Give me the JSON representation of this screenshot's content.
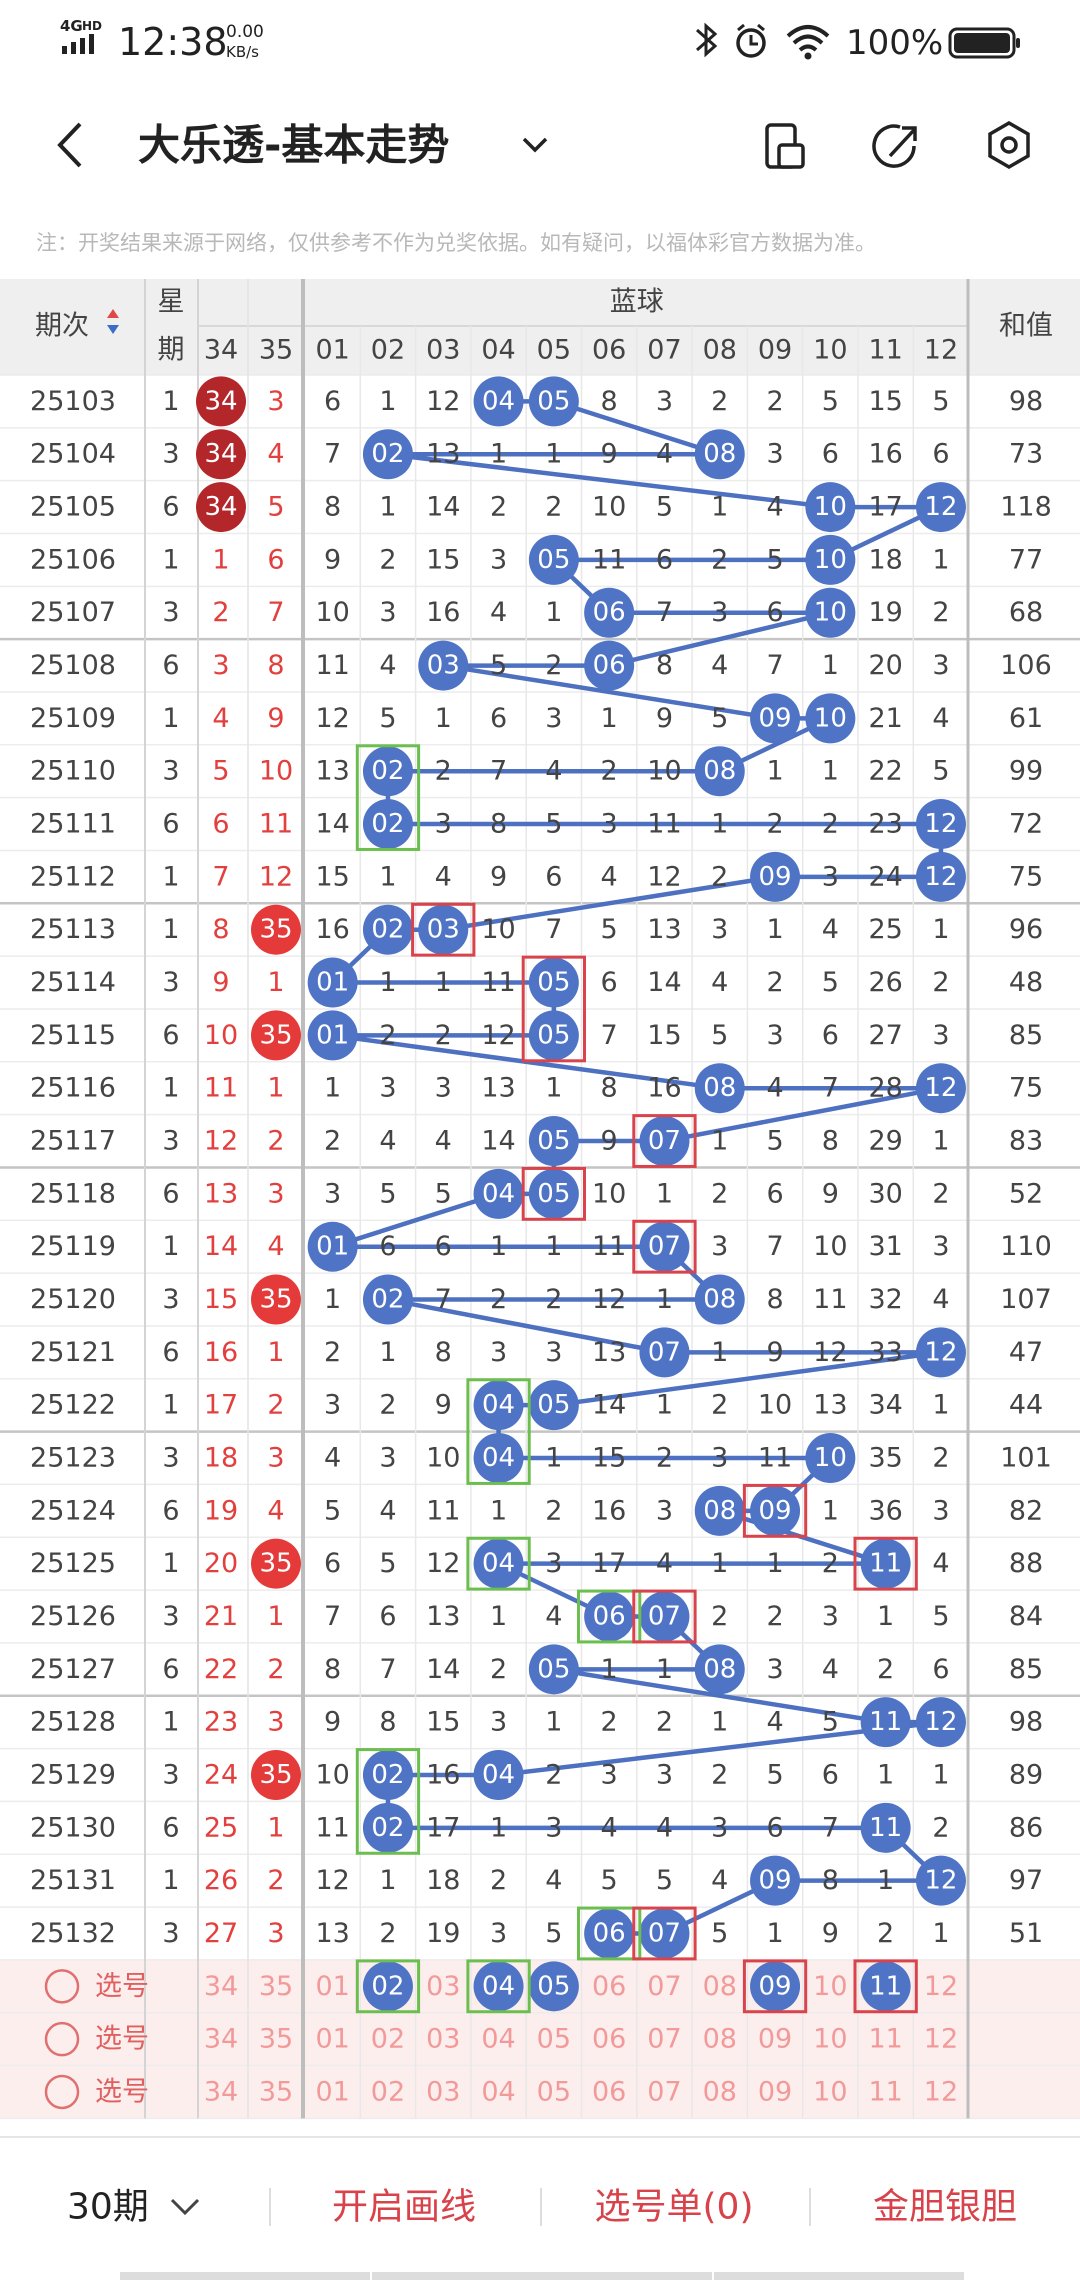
{
  "status_bar": {
    "network": "4G",
    "hd": "HD",
    "time": "12:38",
    "speed": "0.00",
    "speed_unit": "KB/s",
    "battery": "100%"
  },
  "header": {
    "title": "大乐透-基本走势"
  },
  "note": "注：开奖结果来源于网络，仅供参考不作为兑奖依据。如有疑问，以福体彩官方数据为准。",
  "table": {
    "headers": {
      "period": "期次",
      "weekday": [
        "星",
        "期"
      ],
      "col34": "34",
      "col35": "35",
      "blue": "蓝球",
      "blue_cols": [
        "01",
        "02",
        "03",
        "04",
        "05",
        "06",
        "07",
        "08",
        "09",
        "10",
        "11",
        "12"
      ],
      "sum": "和值"
    },
    "rows": [
      {
        "period": "25103",
        "weekday": "1",
        "c34": "34",
        "c35": "3",
        "blue": [
          "6",
          "1",
          "12",
          "04",
          "05",
          "8",
          "3",
          "2",
          "2",
          "5",
          "15",
          "5"
        ],
        "sum": "98",
        "hits": [
          3,
          4
        ],
        "ball": [
          "c34"
        ]
      },
      {
        "period": "25104",
        "weekday": "3",
        "c34": "34",
        "c35": "4",
        "blue": [
          "7",
          "02",
          "13",
          "1",
          "1",
          "9",
          "4",
          "08",
          "3",
          "6",
          "16",
          "6"
        ],
        "sum": "73",
        "hits": [
          1,
          7
        ],
        "ball": [
          "c34"
        ]
      },
      {
        "period": "25105",
        "weekday": "6",
        "c34": "34",
        "c35": "5",
        "blue": [
          "8",
          "1",
          "14",
          "2",
          "2",
          "10",
          "5",
          "1",
          "4",
          "10",
          "17",
          "12"
        ],
        "sum": "118",
        "hits": [
          9,
          11
        ],
        "ball": [
          "c34"
        ]
      },
      {
        "period": "25106",
        "weekday": "1",
        "c34": "1",
        "c35": "6",
        "blue": [
          "9",
          "2",
          "15",
          "3",
          "05",
          "11",
          "6",
          "2",
          "5",
          "10",
          "18",
          "1"
        ],
        "sum": "77",
        "hits": [
          4,
          9
        ],
        "ball": []
      },
      {
        "period": "25107",
        "weekday": "3",
        "c34": "2",
        "c35": "7",
        "blue": [
          "10",
          "3",
          "16",
          "4",
          "1",
          "06",
          "7",
          "3",
          "6",
          "10",
          "19",
          "2"
        ],
        "sum": "68",
        "hits": [
          5,
          9
        ],
        "ball": []
      },
      {
        "period": "25108",
        "weekday": "6",
        "c34": "3",
        "c35": "8",
        "blue": [
          "11",
          "4",
          "03",
          "5",
          "2",
          "06",
          "8",
          "4",
          "7",
          "1",
          "20",
          "3"
        ],
        "sum": "106",
        "hits": [
          2,
          5
        ],
        "ball": []
      },
      {
        "period": "25109",
        "weekday": "1",
        "c34": "4",
        "c35": "9",
        "blue": [
          "12",
          "5",
          "1",
          "6",
          "3",
          "1",
          "9",
          "5",
          "09",
          "10",
          "21",
          "4"
        ],
        "sum": "61",
        "hits": [
          8,
          9
        ],
        "ball": []
      },
      {
        "period": "25110",
        "weekday": "3",
        "c34": "5",
        "c35": "10",
        "blue": [
          "13",
          "02",
          "2",
          "7",
          "4",
          "2",
          "10",
          "08",
          "1",
          "1",
          "22",
          "5"
        ],
        "sum": "99",
        "hits": [
          1,
          7
        ],
        "ball": []
      },
      {
        "period": "25111",
        "weekday": "6",
        "c34": "6",
        "c35": "11",
        "blue": [
          "14",
          "02",
          "3",
          "8",
          "5",
          "3",
          "11",
          "1",
          "2",
          "2",
          "23",
          "12"
        ],
        "sum": "72",
        "hits": [
          1,
          11
        ],
        "ball": []
      },
      {
        "period": "25112",
        "weekday": "1",
        "c34": "7",
        "c35": "12",
        "blue": [
          "15",
          "1",
          "4",
          "9",
          "6",
          "4",
          "12",
          "2",
          "09",
          "3",
          "24",
          "12"
        ],
        "sum": "75",
        "hits": [
          8,
          11
        ],
        "ball": []
      },
      {
        "period": "25113",
        "weekday": "1",
        "c34": "8",
        "c35": "35",
        "blue": [
          "16",
          "02",
          "03",
          "10",
          "7",
          "5",
          "13",
          "3",
          "1",
          "4",
          "25",
          "1"
        ],
        "sum": "96",
        "hits": [
          1,
          2
        ],
        "ball": [
          "c35"
        ]
      },
      {
        "period": "25114",
        "weekday": "3",
        "c34": "9",
        "c35": "1",
        "blue": [
          "01",
          "1",
          "1",
          "11",
          "05",
          "6",
          "14",
          "4",
          "2",
          "5",
          "26",
          "2"
        ],
        "sum": "48",
        "hits": [
          0,
          4
        ],
        "ball": []
      },
      {
        "period": "25115",
        "weekday": "6",
        "c34": "10",
        "c35": "35",
        "blue": [
          "01",
          "2",
          "2",
          "12",
          "05",
          "7",
          "15",
          "5",
          "3",
          "6",
          "27",
          "3"
        ],
        "sum": "85",
        "hits": [
          0,
          4
        ],
        "ball": [
          "c35"
        ]
      },
      {
        "period": "25116",
        "weekday": "1",
        "c34": "11",
        "c35": "1",
        "blue": [
          "1",
          "3",
          "3",
          "13",
          "1",
          "8",
          "16",
          "08",
          "4",
          "7",
          "28",
          "12"
        ],
        "sum": "75",
        "hits": [
          7,
          11
        ],
        "ball": []
      },
      {
        "period": "25117",
        "weekday": "3",
        "c34": "12",
        "c35": "2",
        "blue": [
          "2",
          "4",
          "4",
          "14",
          "05",
          "9",
          "07",
          "1",
          "5",
          "8",
          "29",
          "1"
        ],
        "sum": "83",
        "hits": [
          4,
          6
        ],
        "ball": []
      },
      {
        "period": "25118",
        "weekday": "6",
        "c34": "13",
        "c35": "3",
        "blue": [
          "3",
          "5",
          "5",
          "04",
          "05",
          "10",
          "1",
          "2",
          "6",
          "9",
          "30",
          "2"
        ],
        "sum": "52",
        "hits": [
          3,
          4
        ],
        "ball": []
      },
      {
        "period": "25119",
        "weekday": "1",
        "c34": "14",
        "c35": "4",
        "blue": [
          "01",
          "6",
          "6",
          "1",
          "1",
          "11",
          "07",
          "3",
          "7",
          "10",
          "31",
          "3"
        ],
        "sum": "110",
        "hits": [
          0,
          6
        ],
        "ball": []
      },
      {
        "period": "25120",
        "weekday": "3",
        "c34": "15",
        "c35": "35",
        "blue": [
          "1",
          "02",
          "7",
          "2",
          "2",
          "12",
          "1",
          "08",
          "8",
          "11",
          "32",
          "4"
        ],
        "sum": "107",
        "hits": [
          1,
          7
        ],
        "ball": [
          "c35"
        ]
      },
      {
        "period": "25121",
        "weekday": "6",
        "c34": "16",
        "c35": "1",
        "blue": [
          "2",
          "1",
          "8",
          "3",
          "3",
          "13",
          "07",
          "1",
          "9",
          "12",
          "33",
          "12"
        ],
        "sum": "47",
        "hits": [
          6,
          11
        ],
        "ball": []
      },
      {
        "period": "25122",
        "weekday": "1",
        "c34": "17",
        "c35": "2",
        "blue": [
          "3",
          "2",
          "9",
          "04",
          "05",
          "14",
          "1",
          "2",
          "10",
          "13",
          "34",
          "1"
        ],
        "sum": "44",
        "hits": [
          3,
          4
        ],
        "ball": []
      },
      {
        "period": "25123",
        "weekday": "3",
        "c34": "18",
        "c35": "3",
        "blue": [
          "4",
          "3",
          "10",
          "04",
          "1",
          "15",
          "2",
          "3",
          "11",
          "10",
          "35",
          "2"
        ],
        "sum": "101",
        "hits": [
          3,
          9
        ],
        "ball": []
      },
      {
        "period": "25124",
        "weekday": "6",
        "c34": "19",
        "c35": "4",
        "blue": [
          "5",
          "4",
          "11",
          "1",
          "2",
          "16",
          "3",
          "08",
          "09",
          "1",
          "36",
          "3"
        ],
        "sum": "82",
        "hits": [
          7,
          8
        ],
        "ball": []
      },
      {
        "period": "25125",
        "weekday": "1",
        "c34": "20",
        "c35": "35",
        "blue": [
          "6",
          "5",
          "12",
          "04",
          "3",
          "17",
          "4",
          "1",
          "1",
          "2",
          "11",
          "4"
        ],
        "sum": "88",
        "hits": [
          3,
          10
        ],
        "ball": [
          "c35"
        ]
      },
      {
        "period": "25126",
        "weekday": "3",
        "c34": "21",
        "c35": "1",
        "blue": [
          "7",
          "6",
          "13",
          "1",
          "4",
          "06",
          "07",
          "2",
          "2",
          "3",
          "1",
          "5"
        ],
        "sum": "84",
        "hits": [
          5,
          6
        ],
        "ball": []
      },
      {
        "period": "25127",
        "weekday": "6",
        "c34": "22",
        "c35": "2",
        "blue": [
          "8",
          "7",
          "14",
          "2",
          "05",
          "1",
          "1",
          "08",
          "3",
          "4",
          "2",
          "6"
        ],
        "sum": "85",
        "hits": [
          4,
          7
        ],
        "ball": []
      },
      {
        "period": "25128",
        "weekday": "1",
        "c34": "23",
        "c35": "3",
        "blue": [
          "9",
          "8",
          "15",
          "3",
          "1",
          "2",
          "2",
          "1",
          "4",
          "5",
          "11",
          "12"
        ],
        "sum": "98",
        "hits": [
          10,
          11
        ],
        "ball": []
      },
      {
        "period": "25129",
        "weekday": "3",
        "c34": "24",
        "c35": "35",
        "blue": [
          "10",
          "02",
          "16",
          "04",
          "2",
          "3",
          "3",
          "2",
          "5",
          "6",
          "1",
          "1"
        ],
        "sum": "89",
        "hits": [
          1,
          3
        ],
        "ball": [
          "c35"
        ]
      },
      {
        "period": "25130",
        "weekday": "6",
        "c34": "25",
        "c35": "1",
        "blue": [
          "11",
          "02",
          "17",
          "1",
          "3",
          "4",
          "4",
          "3",
          "6",
          "7",
          "11",
          "2"
        ],
        "sum": "86",
        "hits": [
          1,
          10
        ],
        "ball": []
      },
      {
        "period": "25131",
        "weekday": "1",
        "c34": "26",
        "c35": "2",
        "blue": [
          "12",
          "1",
          "18",
          "2",
          "4",
          "5",
          "5",
          "4",
          "09",
          "8",
          "1",
          "12"
        ],
        "sum": "97",
        "hits": [
          8,
          11
        ],
        "ball": []
      },
      {
        "period": "25132",
        "weekday": "3",
        "c34": "27",
        "c35": "3",
        "blue": [
          "13",
          "2",
          "19",
          "3",
          "5",
          "06",
          "07",
          "5",
          "1",
          "9",
          "2",
          "1"
        ],
        "sum": "51",
        "hits": [
          5,
          6
        ],
        "ball": []
      }
    ],
    "pick_rows": [
      {
        "label": "选号",
        "cells": [
          "34",
          "35",
          "01",
          "02",
          "03",
          "04",
          "05",
          "06",
          "07",
          "08",
          "09",
          "10",
          "11",
          "12"
        ],
        "hits": [
          3,
          5,
          6,
          10,
          12
        ]
      },
      {
        "label": "选号",
        "cells": [
          "34",
          "35",
          "01",
          "02",
          "03",
          "04",
          "05",
          "06",
          "07",
          "08",
          "09",
          "10",
          "11",
          "12"
        ],
        "hits": []
      },
      {
        "label": "选号",
        "cells": [
          "34",
          "35",
          "01",
          "02",
          "03",
          "04",
          "05",
          "06",
          "07",
          "08",
          "09",
          "10",
          "11",
          "12"
        ],
        "hits": []
      }
    ]
  },
  "bottom_bar": {
    "periods": "30期",
    "draw": "开启画线",
    "picks": "选号单(0)",
    "gold": "金胆银胆"
  }
}
